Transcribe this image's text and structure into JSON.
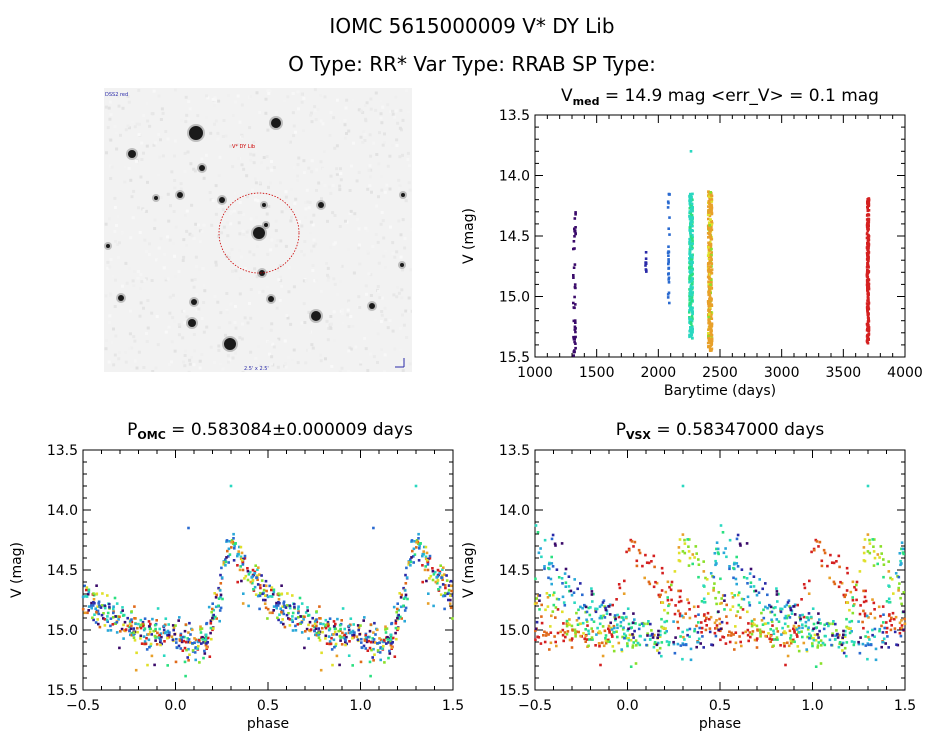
{
  "header": {
    "line1": "IOMC 5615000009    V* DY Lib",
    "line2": "O Type: RR*  Var Type: RRAB  SP Type:"
  },
  "sky_image": {
    "corner_label_tl": "DSS2 red",
    "target_label": "V* DY Lib",
    "bottom_label": "2.5' x 2.5'",
    "circle_color": "#cc0000"
  },
  "colors": {
    "palette": [
      "#3a0a6a",
      "#2a2aa8",
      "#2a6ad0",
      "#2aa8d8",
      "#2ad8c0",
      "#2ae080",
      "#8ae02a",
      "#e0e02a",
      "#e8a02a",
      "#e06a1a",
      "#d42020"
    ]
  },
  "chart_data": [
    {
      "id": "timeseries",
      "type": "scatter",
      "title_main": "V",
      "title_sub": "med",
      "title_rest": " = 14.9 mag <err_V> = 0.1 mag",
      "xlabel": "Barytime (days)",
      "ylabel": "V (mag)",
      "xlim": [
        1000,
        4000
      ],
      "ylim": [
        15.5,
        13.5
      ],
      "xticks": [
        1000,
        1500,
        2000,
        2500,
        3000,
        3500,
        4000
      ],
      "xtick_labels": [
        "1000",
        "1500",
        "2000",
        "2500",
        "3000",
        "3500",
        "4000"
      ],
      "yticks": [
        13.5,
        14.0,
        14.5,
        15.0,
        15.5
      ],
      "ytick_labels": [
        "13.5",
        "14.0",
        "14.5",
        "15.0",
        "15.5"
      ],
      "series": [
        {
          "name": "epoch1",
          "x_center": 1320,
          "x_spread": 10,
          "ymin": 14.3,
          "ymax": 15.5,
          "n": 45,
          "color_index": 0
        },
        {
          "name": "epoch2",
          "x_center": 1900,
          "x_spread": 6,
          "ymin": 14.58,
          "ymax": 14.8,
          "n": 10,
          "color_index": 1
        },
        {
          "name": "epoch3",
          "x_center": 2085,
          "x_spread": 6,
          "ymin": 14.15,
          "ymax": 15.3,
          "n": 30,
          "color_index": 2
        },
        {
          "name": "epoch4",
          "x_center": 2265,
          "x_spread": 14,
          "ymin": 14.15,
          "ymax": 15.35,
          "n": 260,
          "color_index": 4
        },
        {
          "name": "epoch4-outlier",
          "x_center": 2265,
          "x_spread": 0,
          "ymin": 13.8,
          "ymax": 13.8,
          "n": 1,
          "color_index": 4
        },
        {
          "name": "epoch5",
          "x_center": 2420,
          "x_spread": 16,
          "ymin": 14.13,
          "ymax": 15.45,
          "n": 340,
          "color_index": 8
        },
        {
          "name": "epoch6",
          "x_center": 3700,
          "x_spread": 8,
          "ymin": 14.18,
          "ymax": 15.4,
          "n": 230,
          "color_index": 10
        }
      ]
    },
    {
      "id": "phase-omc",
      "type": "scatter",
      "title_main": "P",
      "title_sub": "OMC",
      "title_rest": " = 0.583084±0.000009 days",
      "period": 0.583084,
      "xlabel": "phase",
      "ylabel": "V (mag)",
      "xlim": [
        -0.5,
        1.5
      ],
      "ylim": [
        15.5,
        13.5
      ],
      "xticks": [
        -0.5,
        0.0,
        0.5,
        1.0,
        1.5
      ],
      "xtick_labels": [
        "−0.5",
        "0.0",
        "0.5",
        "1.0",
        "1.5"
      ],
      "yticks": [
        13.5,
        14.0,
        14.5,
        15.0,
        15.5
      ],
      "ytick_labels": [
        "13.5",
        "14.0",
        "14.5",
        "15.0",
        "15.5"
      ],
      "light_curve": {
        "description": "RRab light curve folded on OMC period, shown twice",
        "max_phase": 0.3,
        "max_mag": 14.25,
        "min_mag": 15.1,
        "rise_start_phase": 0.17,
        "scatter": 0.1,
        "n_per_cycle": 480
      },
      "outliers": [
        [
          0.3,
          13.8
        ],
        [
          1.3,
          13.8
        ],
        [
          0.07,
          14.15
        ],
        [
          1.07,
          14.15
        ]
      ]
    },
    {
      "id": "phase-vsx",
      "type": "scatter",
      "title_main": "P",
      "title_sub": "VSX",
      "title_rest": " = 0.58347000 days",
      "period": 0.58347,
      "xlabel": "phase",
      "ylabel": "V (mag)",
      "xlim": [
        -0.5,
        1.5
      ],
      "ylim": [
        15.5,
        13.5
      ],
      "xticks": [
        -0.5,
        0.0,
        0.5,
        1.0,
        1.5
      ],
      "xtick_labels": [
        "−0.5",
        "0.0",
        "0.5",
        "1.0",
        "1.5"
      ],
      "yticks": [
        13.5,
        14.0,
        14.5,
        15.0,
        15.5
      ],
      "ytick_labels": [
        "13.5",
        "14.0",
        "14.5",
        "15.0",
        "15.5"
      ],
      "light_curve": {
        "description": "Same data folded on VSX period; epochs shift in phase producing multiple offset curves",
        "epoch_phase_offsets": [
          {
            "color_index": 10,
            "offset": -0.28
          },
          {
            "color_index": 7,
            "offset": 0.0
          },
          {
            "color_index": 4,
            "offset": 0.2
          },
          {
            "color_index": 1,
            "offset": 0.3
          }
        ],
        "max_mag": 14.25,
        "min_mag": 15.1,
        "scatter": 0.1
      },
      "outliers": [
        [
          0.3,
          13.8
        ],
        [
          1.3,
          13.8
        ]
      ]
    }
  ]
}
